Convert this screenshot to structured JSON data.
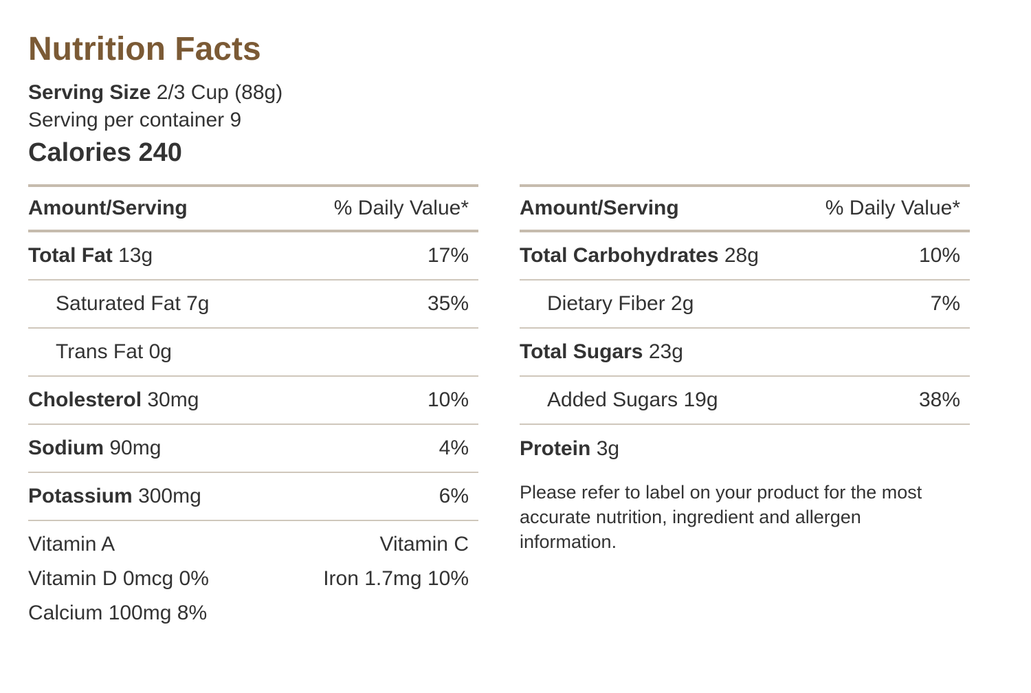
{
  "header": {
    "title": "Nutrition Facts",
    "serving_size_label": "Serving Size",
    "serving_size_value": "2/3 Cup (88g)",
    "servings_per_container": "Serving per container 9",
    "calories": "Calories 240"
  },
  "columns": {
    "amount": "Amount/Serving",
    "daily_value": "% Daily Value*"
  },
  "left_rows": [
    {
      "name": "Total Fat",
      "amount": "13g",
      "dv": "17%"
    },
    {
      "name": "Saturated Fat 7g",
      "amount": "",
      "dv": "35%"
    },
    {
      "name": "Trans Fat 0g",
      "amount": "",
      "dv": ""
    },
    {
      "name": "Cholesterol",
      "amount": "30mg",
      "dv": "10%"
    },
    {
      "name": "Sodium",
      "amount": "90mg",
      "dv": "4%"
    },
    {
      "name": "Potassium",
      "amount": "300mg",
      "dv": "6%"
    }
  ],
  "vitamins": [
    {
      "left": "Vitamin A",
      "right": "Vitamin C"
    },
    {
      "left": "Vitamin D 0mcg 0%",
      "right": "Iron 1.7mg 10%"
    },
    {
      "left": "Calcium 100mg 8%",
      "right": ""
    }
  ],
  "right_rows": [
    {
      "name": "Total Carbohydrates",
      "amount": "28g",
      "dv": "10%"
    },
    {
      "name": "Dietary Fiber 2g",
      "amount": "",
      "dv": "7%"
    },
    {
      "name": "Total Sugars",
      "amount": "23g",
      "dv": ""
    },
    {
      "name": "Added Sugars 19g",
      "amount": "",
      "dv": "38%"
    },
    {
      "name": "Protein",
      "amount": "3g",
      "dv": ""
    }
  ],
  "note": "Please refer to label on your product for the most accurate nutrition, ingredient and allergen information.",
  "colors": {
    "title": "#7b5a35",
    "text": "#333333",
    "divider": "#c6bcae"
  }
}
